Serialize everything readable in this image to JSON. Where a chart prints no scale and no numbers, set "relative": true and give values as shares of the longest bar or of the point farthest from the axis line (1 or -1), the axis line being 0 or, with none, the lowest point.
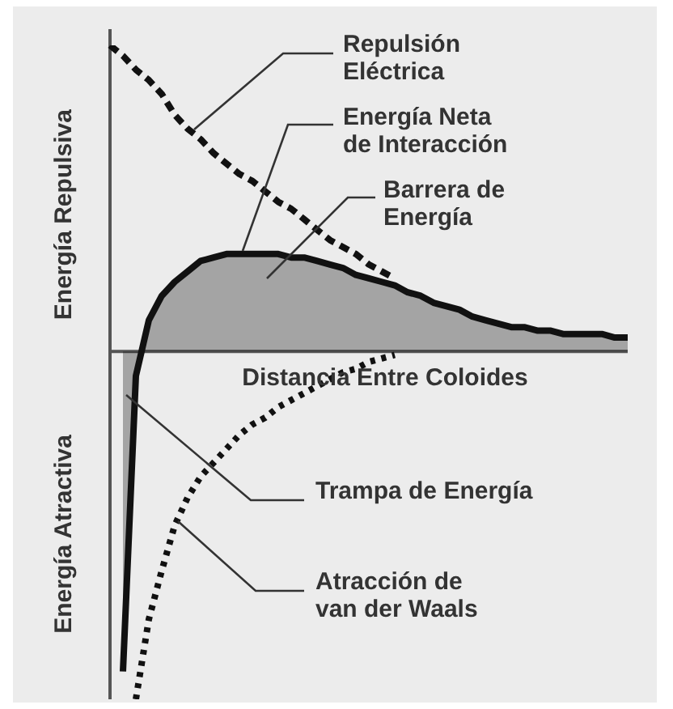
{
  "chart_data": {
    "type": "line",
    "relative": true,
    "xlabel": "Distancia Entre Coloides",
    "ylabel": "Energía Repulsiva",
    "categories": [
      null,
      null,
      null,
      null,
      null,
      null,
      null,
      null,
      null,
      null,
      null,
      null,
      null,
      null,
      null,
      null,
      null,
      null,
      null,
      null,
      null,
      null,
      null,
      null,
      null,
      null,
      null,
      null,
      null,
      null,
      null,
      null,
      null,
      null,
      null,
      null,
      null,
      null,
      null,
      null,
      null
    ],
    "series": [
      {
        "type": "line",
        "line_style": "dashed",
        "color": "#111111",
        "values": [
          0.88,
          0.85,
          0.81,
          0.78,
          0.74,
          0.68,
          0.64,
          0.61,
          0.57,
          0.54,
          0.51,
          0.49,
          0.46,
          0.43,
          0.41,
          0.38,
          0.35,
          0.32,
          0.3,
          0.28,
          0.25,
          0.23,
          0.21,
          null,
          null,
          null,
          null,
          null,
          null,
          null,
          null,
          null,
          null,
          null,
          null,
          null,
          null,
          null,
          null,
          null,
          null
        ]
      },
      {
        "type": "area",
        "line_style": "solid",
        "color": "#111111",
        "values": [
          null,
          -0.92,
          -0.07,
          0.09,
          0.16,
          0.2,
          0.23,
          0.26,
          0.27,
          0.28,
          0.28,
          0.28,
          0.28,
          0.28,
          0.27,
          0.27,
          0.26,
          0.25,
          0.24,
          0.22,
          0.21,
          0.2,
          0.19,
          0.17,
          0.16,
          0.14,
          0.13,
          0.12,
          0.1,
          0.09,
          0.08,
          0.07,
          0.07,
          0.06,
          0.06,
          0.05,
          0.05,
          0.05,
          0.05,
          0.04,
          0.04
        ]
      },
      {
        "type": "line",
        "line_style": "dotted",
        "color": "#111111",
        "values": [
          null,
          null,
          -1.0,
          -0.77,
          -0.63,
          -0.5,
          -0.42,
          -0.36,
          -0.32,
          -0.28,
          -0.24,
          -0.21,
          -0.19,
          -0.16,
          -0.14,
          -0.12,
          -0.1,
          -0.08,
          -0.06,
          -0.05,
          -0.03,
          -0.02,
          -0.01,
          null,
          null,
          null,
          null,
          null,
          null,
          null,
          null,
          null,
          null,
          null,
          null,
          null,
          null,
          null,
          null,
          null,
          null
        ]
      }
    ],
    "annotations": [
      "Energía Atractiva",
      "Repulsión\nEléctrica",
      "Energía Neta\nde Interacción",
      "Barrera de\nEnergía",
      "Trampa de Energía",
      "Atracción de\nvan der Waals"
    ],
    "legend": false,
    "grid": false,
    "marker": "none"
  }
}
